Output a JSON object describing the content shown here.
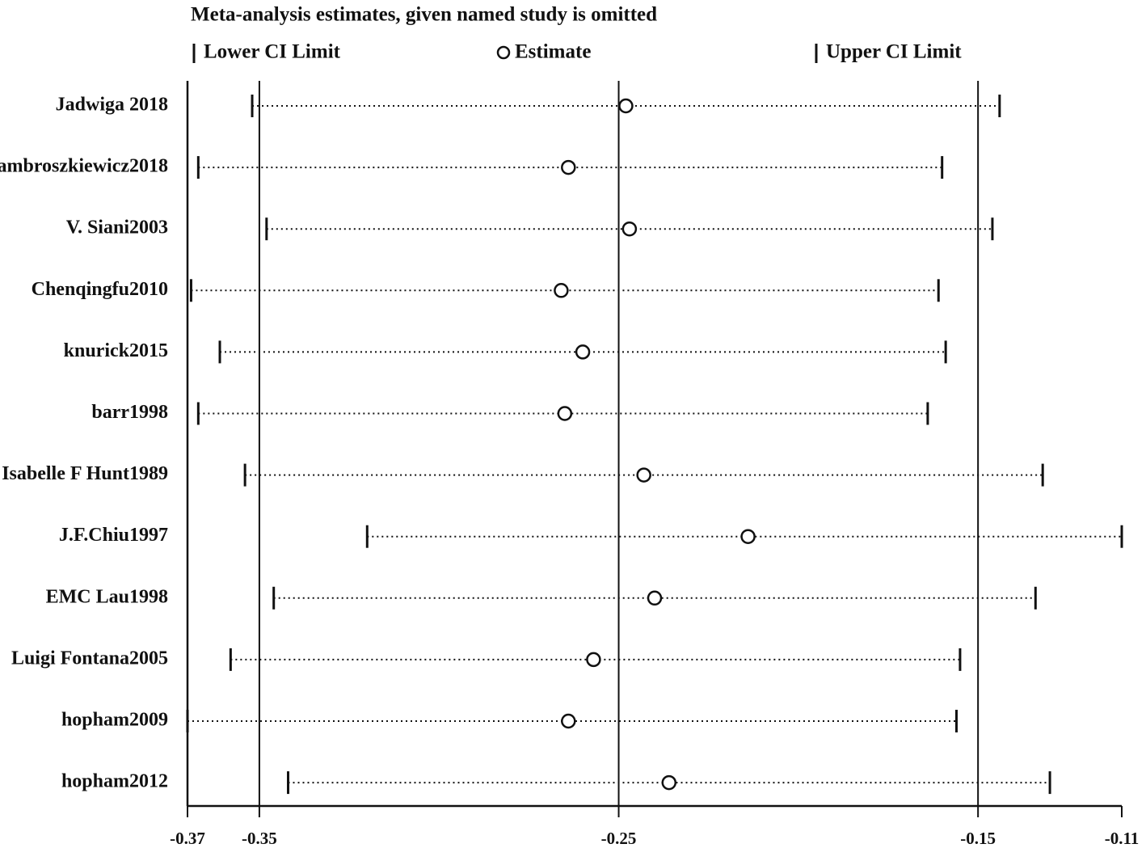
{
  "chart_data": {
    "type": "forest",
    "title": "Meta-analysis estimates, given named study is omitted",
    "legend": {
      "lower": "Lower CI Limit",
      "estimate": "Estimate",
      "upper": "Upper CI Limit"
    },
    "categories": [
      "Jadwiga 2018",
      "ambroszkiewicz2018",
      "V. Siani2003",
      "Chenqingfu2010",
      "knurick2015",
      "barr1998",
      "Isabelle F Hunt1989",
      "J.F.Chiu1997",
      "EMC Lau1998",
      "Luigi Fontana2005",
      "hopham2009",
      "hopham2012"
    ],
    "estimate": [
      -0.248,
      -0.264,
      -0.247,
      -0.266,
      -0.26,
      -0.265,
      -0.243,
      -0.214,
      -0.24,
      -0.257,
      -0.264,
      -0.236
    ],
    "lower": [
      -0.352,
      -0.367,
      -0.348,
      -0.369,
      -0.361,
      -0.367,
      -0.354,
      -0.32,
      -0.346,
      -0.358,
      -0.37,
      -0.342
    ],
    "upper": [
      -0.144,
      -0.16,
      -0.146,
      -0.161,
      -0.159,
      -0.164,
      -0.132,
      -0.11,
      -0.134,
      -0.155,
      -0.156,
      -0.13
    ],
    "xlim": [
      -0.37,
      -0.11
    ],
    "xticks": [
      -0.37,
      -0.35,
      -0.25,
      -0.15,
      -0.11
    ],
    "reference_lines": [
      -0.35,
      -0.25,
      -0.15
    ],
    "color": "#111111"
  }
}
